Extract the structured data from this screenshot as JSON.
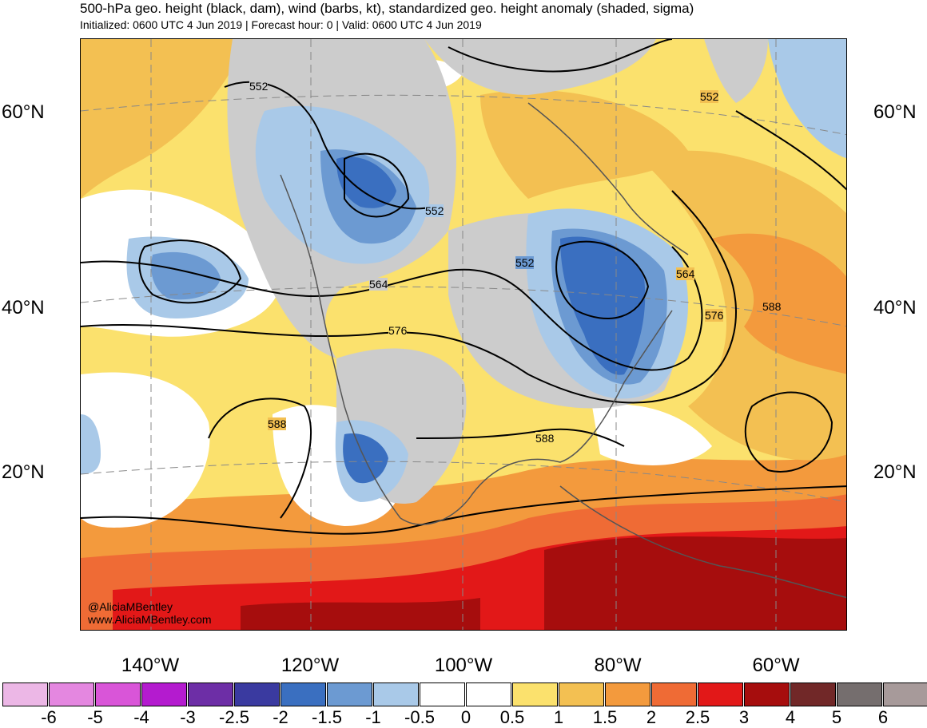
{
  "header": {
    "title": "500-hPa geo. height (black, dam), wind (barbs, kt), standardized geo. height anomaly (shaded, sigma)",
    "subtitle": "Initialized: 0600 UTC 4 Jun 2019 | Forecast hour: 0 | Valid: 0600 UTC 4 Jun 2019"
  },
  "axes": {
    "lat_labels": [
      "60°N",
      "40°N",
      "20°N"
    ],
    "lon_labels": [
      "140°W",
      "120°W",
      "100°W",
      "80°W",
      "60°W"
    ]
  },
  "contour_labels": [
    "552",
    "552",
    "552",
    "552",
    "564",
    "564",
    "576",
    "576",
    "588",
    "588",
    "588"
  ],
  "credit": {
    "handle": "@AliciaMBentley",
    "site": "www.AliciaMBentley.com"
  },
  "colorbar": {
    "labels": [
      "-6",
      "-5",
      "-4",
      "-3",
      "-2.5",
      "-2",
      "-1.5",
      "-1",
      "-0.5",
      "0",
      "0.5",
      "1",
      "1.5",
      "2",
      "2.5",
      "3",
      "4",
      "5",
      "6"
    ],
    "colors": [
      "#ecb7e6",
      "#e487e0",
      "#d955d8",
      "#b41bcf",
      "#6d2ea6",
      "#3a3aa0",
      "#3a6fc0",
      "#6c9ad2",
      "#a9c9e8",
      "#ffffff",
      "#ffffff",
      "#fbe16d",
      "#f3c052",
      "#f39a3d",
      "#ef6b35",
      "#e21818",
      "#a60d0d",
      "#712828",
      "#756e6e",
      "#a79a9a"
    ]
  },
  "legend_colors": {
    "neutral_gray": "#cccccc",
    "contour": "#000000"
  }
}
